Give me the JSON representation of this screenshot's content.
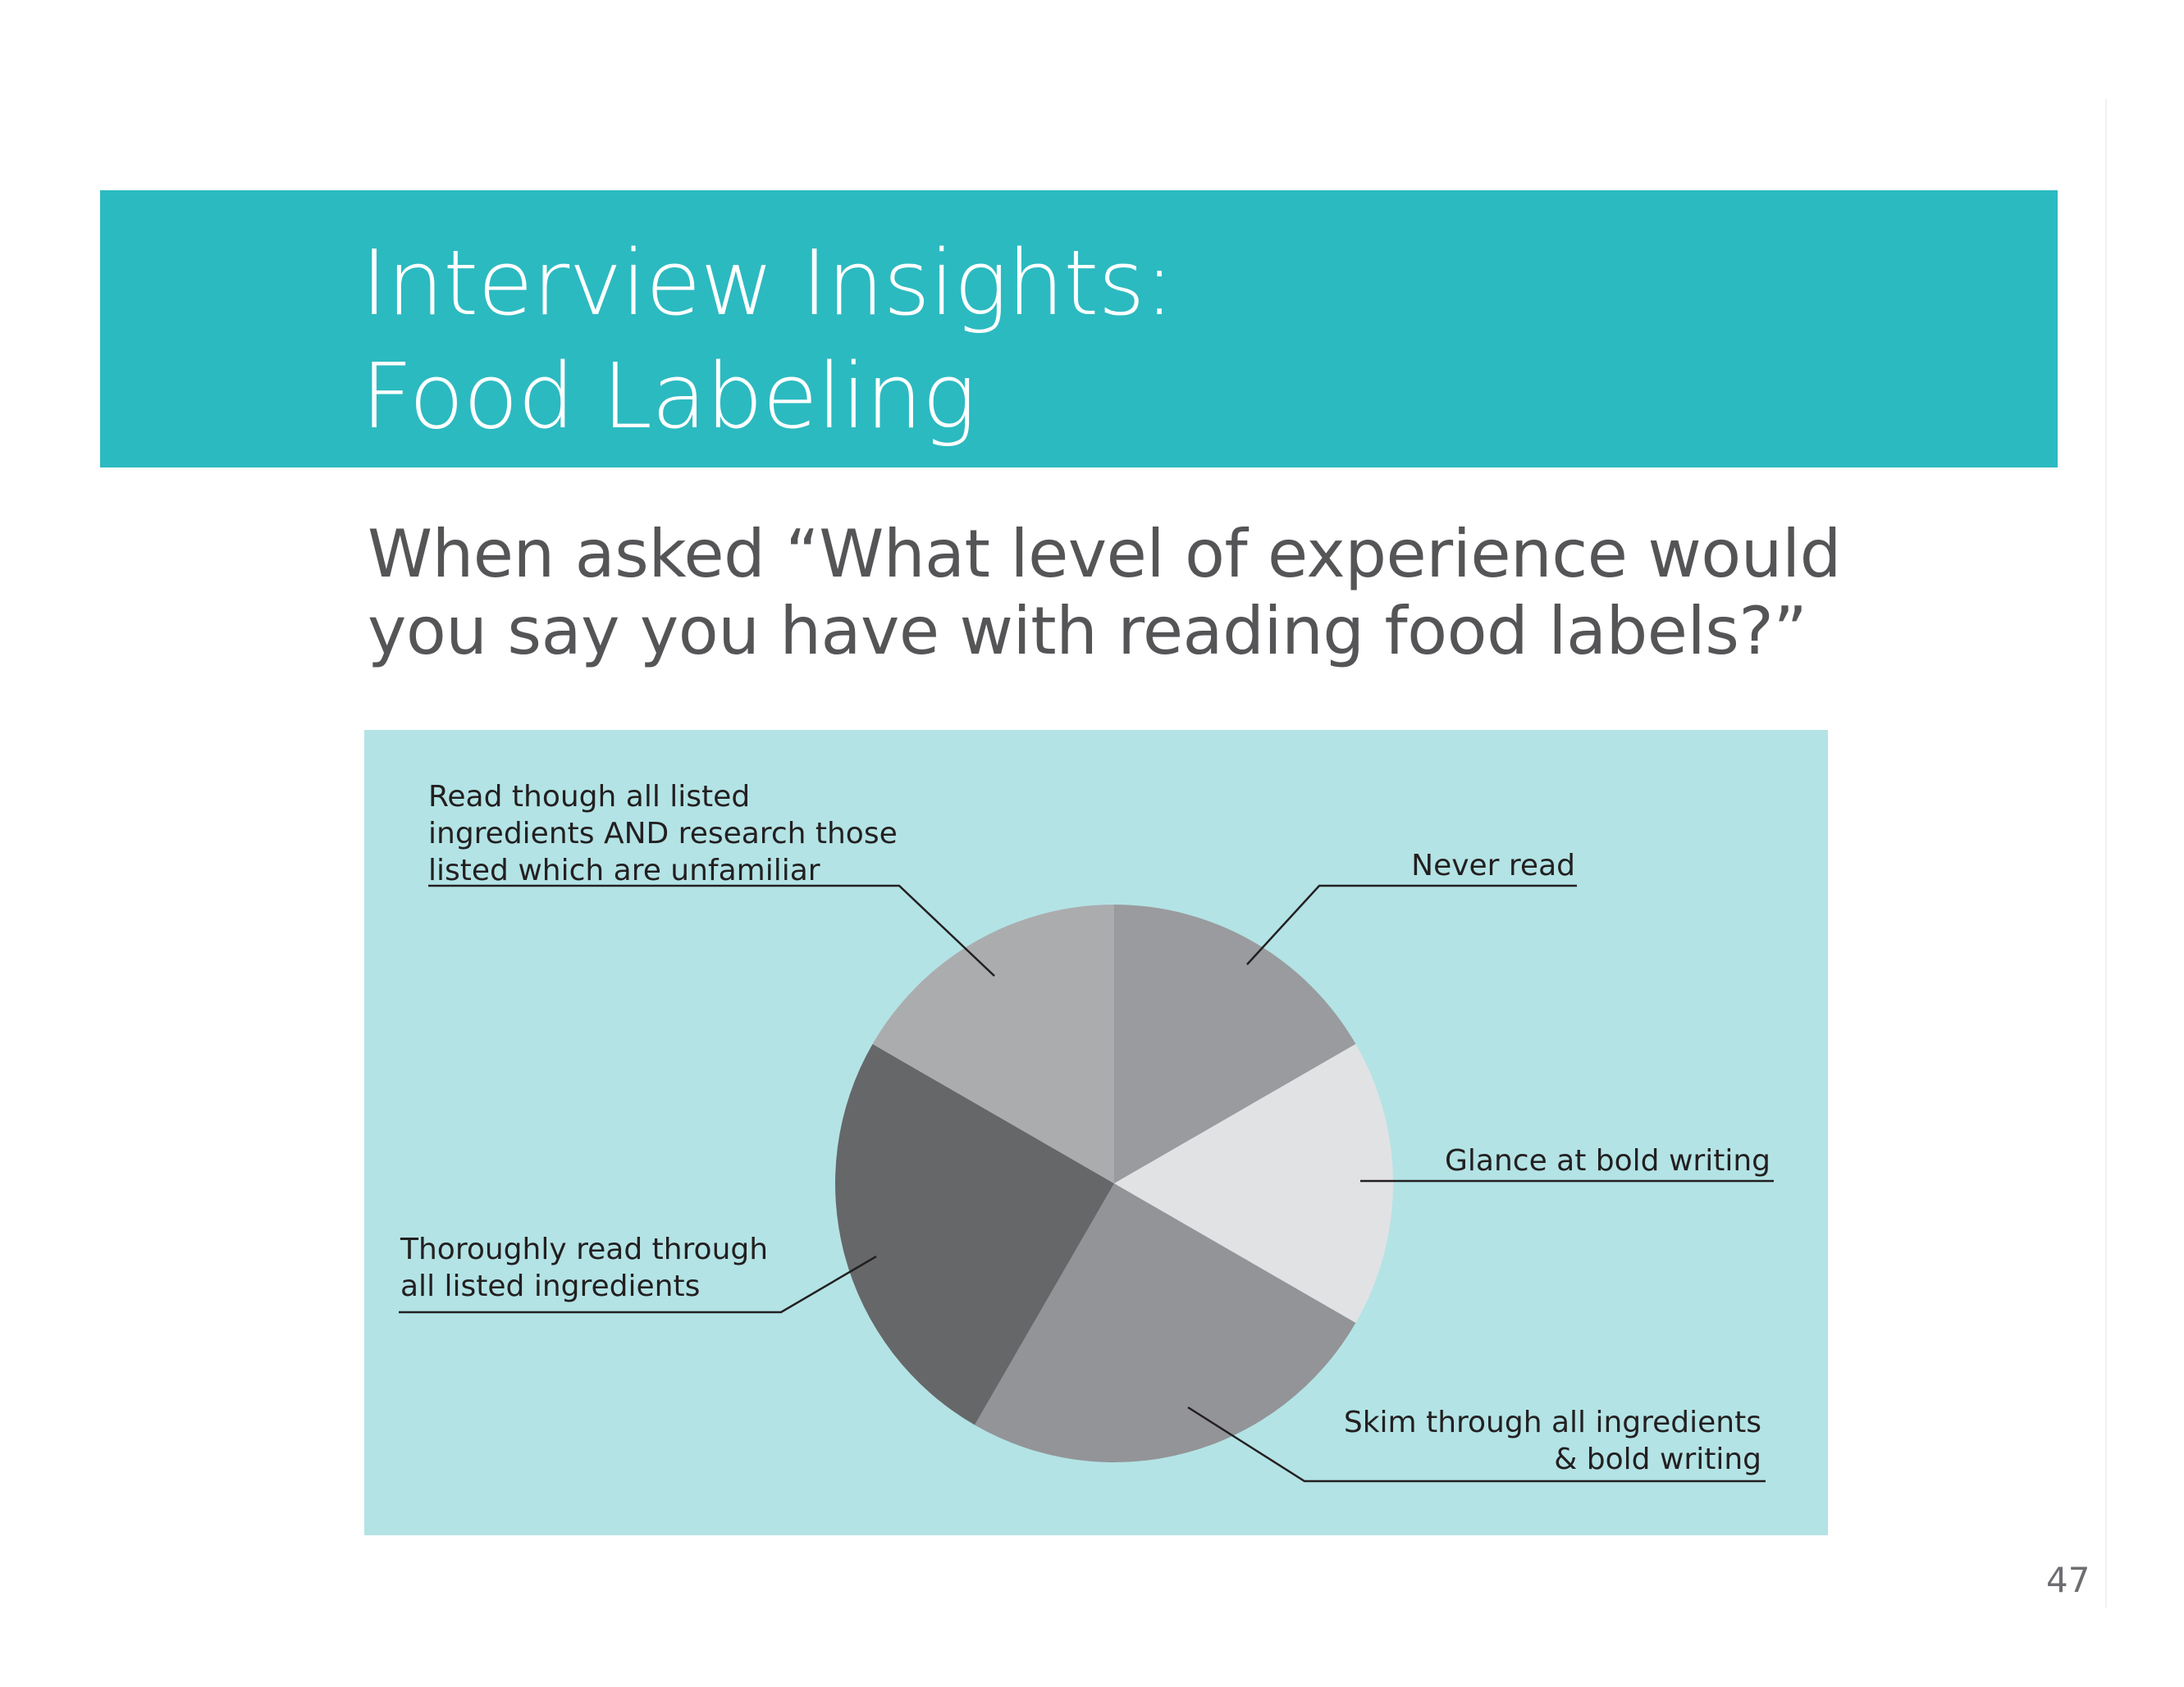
{
  "title": {
    "line1": "Interview Insights:",
    "line2": "Food Labeling"
  },
  "question": {
    "line1": "When asked “What level of experience would",
    "line2": "you say you have with reading food labels?”"
  },
  "page_number": "47",
  "colors": {
    "title_band": "#2bbac0",
    "chart_panel": "#b3e3e5",
    "title_text": "#ffffff",
    "question_text": "#555558",
    "label_text": "#231f20"
  },
  "chart_data": {
    "type": "pie",
    "title": "",
    "start_angle_deg": 0,
    "direction": "clockwise",
    "slices": [
      {
        "name": "Never read",
        "label_lines": [
          "Never read"
        ],
        "value": 1,
        "color": "#9a9b9e",
        "label_anchor": "end"
      },
      {
        "name": "Glance at bold writing",
        "label_lines": [
          "Glance at bold writing"
        ],
        "value": 1,
        "color": "#e1e2e4",
        "label_anchor": "end"
      },
      {
        "name": "Skim through all ingredients & bold writing",
        "label_lines": [
          "Skim through all ingredients",
          "& bold writing"
        ],
        "value": 1.5,
        "color": "#939497",
        "label_anchor": "end"
      },
      {
        "name": "Thoroughly read through all listed ingredients",
        "label_lines": [
          "Thoroughly read through",
          "all listed ingredients"
        ],
        "value": 1.5,
        "color": "#666769",
        "label_anchor": "start"
      },
      {
        "name": "Read though all listed ingredients AND research those listed which are unfamiliar",
        "label_lines": [
          "Read though all listed",
          "ingredients AND research those",
          "listed which are unfamiliar"
        ],
        "value": 1,
        "color": "#abacae",
        "label_anchor": "start"
      }
    ]
  }
}
